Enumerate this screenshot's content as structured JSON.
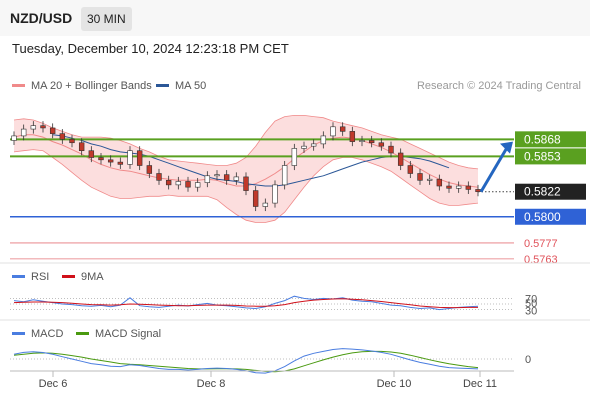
{
  "header": {
    "pair": "NZD/USD",
    "timeframe": "30 MIN"
  },
  "datetime": "Tuesday, December 10, 2024 12:23:18 PM CET",
  "credit": "Research © 2024 Trading Central",
  "colors": {
    "bollinger": "#f08a8a",
    "bollinger_fill": "#fbd8d8",
    "ma50": "#2b5797",
    "resistance": "#5aa020",
    "support": "#2f62d6",
    "target": "#e0525a",
    "last": "#222222",
    "rsi": "#4a7de0",
    "rsi_ma": "#d0101a",
    "macd": "#4a7de0",
    "macd_signal": "#4a9a10",
    "arrow": "#2466c0",
    "candle_up": "#ffffff",
    "candle_down": "#c0392b"
  },
  "chart_data": [
    {
      "type": "candlestick",
      "legend": [
        {
          "label": "MA 20 + Bollinger Bands",
          "color": "#f08a8a"
        },
        {
          "label": "MA 50",
          "color": "#2b5797"
        }
      ],
      "x_ticks": [
        "Dec 6",
        "Dec 8",
        "Dec 10",
        "Dec 11"
      ],
      "y_range": [
        0.5755,
        0.5892
      ],
      "close": [
        0.5871,
        0.5877,
        0.588,
        0.5878,
        0.5873,
        0.5868,
        0.5865,
        0.5858,
        0.5852,
        0.585,
        0.5848,
        0.5846,
        0.5858,
        0.5845,
        0.5838,
        0.5832,
        0.5828,
        0.5831,
        0.5826,
        0.583,
        0.5836,
        0.5837,
        0.5832,
        0.5835,
        0.5823,
        0.5809,
        0.5812,
        0.5828,
        0.5845,
        0.586,
        0.5862,
        0.5864,
        0.5871,
        0.5879,
        0.5875,
        0.5866,
        0.5867,
        0.5865,
        0.5862,
        0.5856,
        0.5845,
        0.5838,
        0.5832,
        0.5833,
        0.5827,
        0.5825,
        0.5827,
        0.5824,
        0.5822
      ],
      "ma20": [
        0.587,
        0.5872,
        0.5872,
        0.587,
        0.5866,
        0.5863,
        0.5859,
        0.5855,
        0.585,
        0.5846,
        0.5843,
        0.5841,
        0.584,
        0.5838,
        0.5836,
        0.5834,
        0.5833,
        0.5832,
        0.5832,
        0.5832,
        0.5833,
        0.5832,
        0.5829,
        0.5827,
        0.5827,
        0.5829,
        0.5833,
        0.5838,
        0.5844,
        0.5851,
        0.5857,
        0.5863,
        0.5867,
        0.5869,
        0.587,
        0.5869,
        0.5867,
        0.5864,
        0.5861,
        0.5857,
        0.5852,
        0.5847,
        0.5842,
        0.5837,
        0.5833,
        0.583,
        0.5828,
        0.5827,
        0.5826
      ],
      "bb_upper": [
        0.5885,
        0.5886,
        0.5885,
        0.5882,
        0.5878,
        0.5875,
        0.5872,
        0.587,
        0.587,
        0.587,
        0.5869,
        0.5867,
        0.5864,
        0.586,
        0.5857,
        0.5853,
        0.585,
        0.5849,
        0.5848,
        0.5847,
        0.5846,
        0.5845,
        0.5845,
        0.5847,
        0.5852,
        0.5862,
        0.5874,
        0.5884,
        0.5888,
        0.5889,
        0.5889,
        0.5888,
        0.5887,
        0.5884,
        0.5882,
        0.588,
        0.5878,
        0.5875,
        0.5872,
        0.587,
        0.5868,
        0.5864,
        0.586,
        0.5856,
        0.5852,
        0.5848,
        0.5845,
        0.5843,
        0.5842
      ],
      "bb_lower": [
        0.5857,
        0.5858,
        0.5859,
        0.5858,
        0.5852,
        0.5846,
        0.5839,
        0.5832,
        0.5826,
        0.5822,
        0.5818,
        0.5816,
        0.5816,
        0.5817,
        0.5818,
        0.5818,
        0.5819,
        0.5818,
        0.5818,
        0.5818,
        0.5818,
        0.5815,
        0.5808,
        0.5802,
        0.5797,
        0.5795,
        0.5795,
        0.5797,
        0.5804,
        0.5815,
        0.5826,
        0.5836,
        0.5844,
        0.585,
        0.5852,
        0.5852,
        0.585,
        0.5847,
        0.5844,
        0.584,
        0.5834,
        0.5828,
        0.5822,
        0.5816,
        0.5812,
        0.581,
        0.581,
        0.5811,
        0.5812
      ],
      "ma50": [
        null,
        null,
        null,
        null,
        0.5872,
        0.5871,
        0.5869,
        0.5867,
        0.5864,
        0.5862,
        0.5859,
        0.5857,
        0.5856,
        0.5855,
        0.5853,
        0.585,
        0.5847,
        0.5844,
        0.5841,
        0.5838,
        0.5835,
        0.5833,
        0.5832,
        0.5831,
        0.5829,
        0.5828,
        0.5827,
        0.5827,
        0.5828,
        0.583,
        0.5832,
        0.5834,
        0.5836,
        0.5839,
        0.5842,
        0.5845,
        0.5848,
        0.585,
        0.5852,
        0.5853,
        0.5853,
        0.5852,
        0.5851,
        0.5849,
        0.5846,
        0.5843,
        null,
        null,
        null
      ],
      "levels": [
        {
          "value": "0.5868",
          "role": "resistance"
        },
        {
          "value": "0.5853",
          "role": "resistance"
        },
        {
          "value": "0.5822",
          "role": "last"
        },
        {
          "value": "0.5800",
          "role": "support"
        },
        {
          "value": "0.5777",
          "role": "target"
        },
        {
          "value": "0.5763",
          "role": "target"
        }
      ],
      "forecast_arrow": {
        "from": 0.5822,
        "to": 0.5866,
        "direction": "up"
      }
    },
    {
      "type": "line",
      "panel": "RSI",
      "series_labels": [
        {
          "label": "RSI",
          "color": "#4a7de0"
        },
        {
          "label": "9MA",
          "color": "#d0101a"
        }
      ],
      "y_ticks": [
        "70",
        "50",
        "30"
      ],
      "y_range": [
        0,
        100
      ],
      "rsi": [
        62,
        58,
        65,
        60,
        55,
        50,
        48,
        44,
        42,
        45,
        40,
        46,
        72,
        44,
        40,
        38,
        42,
        46,
        43,
        48,
        52,
        46,
        44,
        40,
        36,
        34,
        40,
        52,
        62,
        78,
        70,
        66,
        70,
        68,
        72,
        64,
        60,
        58,
        52,
        46,
        44,
        38,
        34,
        36,
        30,
        34,
        38,
        40,
        42
      ],
      "rsi_ma": [
        55,
        56,
        57,
        57,
        56,
        55,
        53,
        50,
        48,
        47,
        46,
        47,
        50,
        49,
        48,
        46,
        45,
        44,
        44,
        45,
        46,
        46,
        46,
        45,
        43,
        42,
        42,
        44,
        48,
        55,
        60,
        64,
        66,
        68,
        69,
        67,
        65,
        62,
        59,
        55,
        51,
        47,
        43,
        40,
        38,
        37,
        37,
        38,
        38
      ]
    },
    {
      "type": "line",
      "panel": "MACD",
      "series_labels": [
        {
          "label": "MACD",
          "color": "#4a7de0"
        },
        {
          "label": "MACD Signal",
          "color": "#4a9a10"
        }
      ],
      "y_ticks": [
        "0"
      ],
      "y_range": [
        -1,
        1
      ],
      "macd": [
        0.25,
        0.35,
        0.38,
        0.34,
        0.25,
        0.12,
        0.0,
        -0.12,
        -0.24,
        -0.3,
        -0.38,
        -0.4,
        -0.3,
        -0.34,
        -0.42,
        -0.5,
        -0.55,
        -0.55,
        -0.58,
        -0.55,
        -0.5,
        -0.48,
        -0.5,
        -0.55,
        -0.62,
        -0.72,
        -0.74,
        -0.62,
        -0.4,
        -0.1,
        0.15,
        0.3,
        0.4,
        0.5,
        0.55,
        0.52,
        0.48,
        0.42,
        0.35,
        0.25,
        0.1,
        -0.05,
        -0.18,
        -0.28,
        -0.38,
        -0.45,
        -0.48,
        -0.5,
        -0.52
      ],
      "macd_signal": [
        0.2,
        0.25,
        0.3,
        0.32,
        0.3,
        0.25,
        0.18,
        0.1,
        0.0,
        -0.08,
        -0.16,
        -0.24,
        -0.28,
        -0.3,
        -0.34,
        -0.38,
        -0.42,
        -0.46,
        -0.5,
        -0.52,
        -0.52,
        -0.51,
        -0.51,
        -0.52,
        -0.55,
        -0.6,
        -0.65,
        -0.67,
        -0.63,
        -0.52,
        -0.36,
        -0.2,
        -0.05,
        0.1,
        0.22,
        0.32,
        0.38,
        0.4,
        0.4,
        0.37,
        0.3,
        0.2,
        0.08,
        -0.04,
        -0.15,
        -0.25,
        -0.33,
        -0.4,
        -0.45
      ]
    }
  ]
}
